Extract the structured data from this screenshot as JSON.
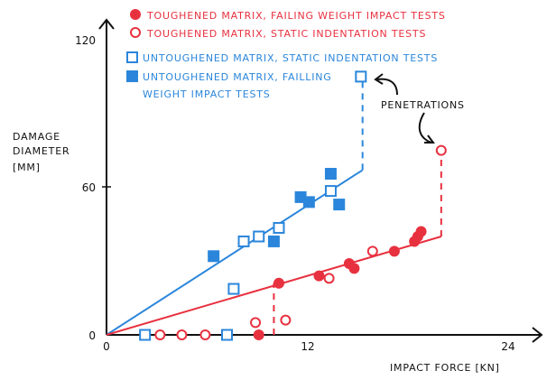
{
  "chart_data": {
    "type": "scatter",
    "xlabel": "IMPACT FORCE [KN]",
    "ylabel_lines": [
      "DAMAGE",
      "DIAMETER",
      "[MM]"
    ],
    "xlim": [
      0,
      24
    ],
    "ylim": [
      0,
      120
    ],
    "x_ticks": [
      "0",
      "12",
      "24"
    ],
    "y_ticks": [
      "0",
      "60",
      "120"
    ],
    "grid": false,
    "legend_placement": "top",
    "annotation": "PENETRATIONS",
    "colors": {
      "red": "#e8313f",
      "blue": "#2b86db"
    },
    "series": [
      {
        "name": "TOUGHENED MATRIX, FAILING WEIGHT IMPACT TESTS",
        "marker": "filled-circle",
        "color": "#e8313f",
        "points": [
          [
            9.1,
            0
          ],
          [
            10.3,
            21
          ],
          [
            12.7,
            24
          ],
          [
            14.5,
            29
          ],
          [
            14.8,
            27
          ],
          [
            17.2,
            34
          ],
          [
            18.4,
            38
          ],
          [
            18.6,
            40
          ],
          [
            18.8,
            42
          ]
        ]
      },
      {
        "name": "TOUGHENED MATRIX, STATIC INDENTATION TESTS",
        "marker": "open-circle",
        "color": "#e8313f",
        "points": [
          [
            3.2,
            0
          ],
          [
            4.5,
            0
          ],
          [
            5.9,
            0
          ],
          [
            8.9,
            5
          ],
          [
            10.7,
            6
          ],
          [
            13.3,
            23
          ],
          [
            15.9,
            34
          ],
          [
            20.0,
            75
          ]
        ]
      },
      {
        "name": "UNTOUGHENED MATRIX, STATIC INDENTATION TESTS",
        "marker": "open-square",
        "color": "#2b86db",
        "points": [
          [
            2.3,
            0
          ],
          [
            7.2,
            0
          ],
          [
            7.6,
            18.7
          ],
          [
            8.2,
            38
          ],
          [
            9.1,
            40
          ],
          [
            10.3,
            43.5
          ],
          [
            13.4,
            58.5
          ],
          [
            15.2,
            105
          ]
        ]
      },
      {
        "name_lines": [
          "UNTOUGHENED MATRIX, FAILLING",
          "WEIGHT IMPACT TESTS"
        ],
        "name": "UNTOUGHENED MATRIX, FAILLING WEIGHT IMPACT TESTS",
        "marker": "filled-square",
        "color": "#2b86db",
        "points": [
          [
            6.4,
            32
          ],
          [
            10.0,
            38
          ],
          [
            11.6,
            56
          ],
          [
            12.1,
            54
          ],
          [
            13.4,
            65.5
          ],
          [
            13.9,
            53
          ]
        ]
      }
    ],
    "trend_lines": [
      {
        "color": "#2b86db",
        "from": [
          0,
          0
        ],
        "to": [
          15.3,
          67
        ]
      },
      {
        "color": "#e8313f",
        "from": [
          0,
          0
        ],
        "to": [
          20,
          40
        ]
      }
    ],
    "dashed_lines": [
      {
        "color": "#e8313f",
        "from": [
          10,
          0
        ],
        "to": [
          10,
          21
        ]
      },
      {
        "color": "#e8313f",
        "from": [
          20,
          40
        ],
        "to": [
          20,
          75
        ]
      },
      {
        "color": "#2b86db",
        "from": [
          15.3,
          67
        ],
        "to": [
          15.3,
          105
        ]
      }
    ]
  }
}
